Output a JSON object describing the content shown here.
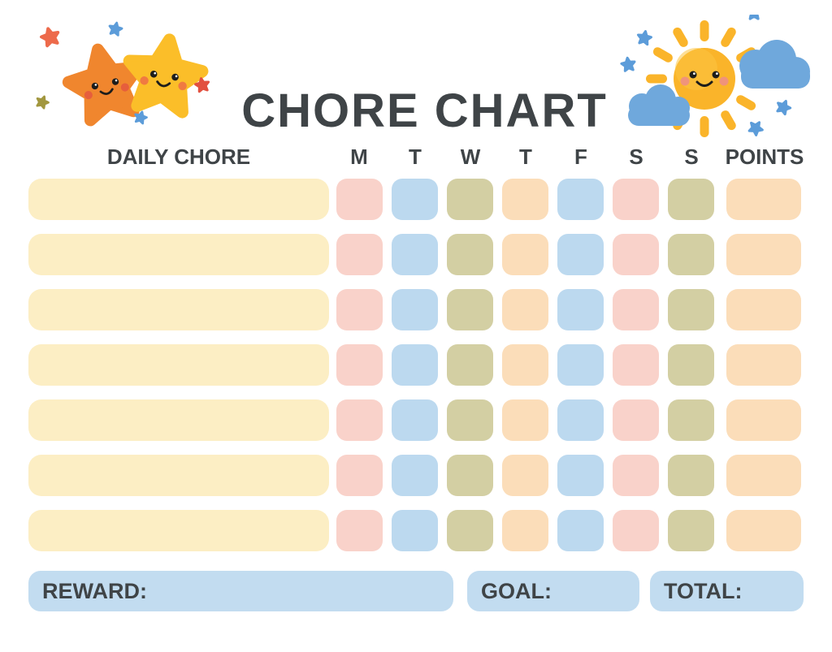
{
  "title": "CHORE CHART",
  "table": {
    "chore_column_header": "DAILY CHORE",
    "day_headers": [
      "M",
      "T",
      "W",
      "T",
      "F",
      "S",
      "S"
    ],
    "points_header": "POINTS",
    "rows": [
      {
        "chore": "",
        "days": [
          "",
          "",
          "",
          "",
          "",
          "",
          ""
        ],
        "points": ""
      },
      {
        "chore": "",
        "days": [
          "",
          "",
          "",
          "",
          "",
          "",
          ""
        ],
        "points": ""
      },
      {
        "chore": "",
        "days": [
          "",
          "",
          "",
          "",
          "",
          "",
          ""
        ],
        "points": ""
      },
      {
        "chore": "",
        "days": [
          "",
          "",
          "",
          "",
          "",
          "",
          ""
        ],
        "points": ""
      },
      {
        "chore": "",
        "days": [
          "",
          "",
          "",
          "",
          "",
          "",
          ""
        ],
        "points": ""
      },
      {
        "chore": "",
        "days": [
          "",
          "",
          "",
          "",
          "",
          "",
          ""
        ],
        "points": ""
      },
      {
        "chore": "",
        "days": [
          "",
          "",
          "",
          "",
          "",
          "",
          ""
        ],
        "points": ""
      }
    ],
    "colors": {
      "chore_cell": "#FCEEC4",
      "day_cells": [
        "#F9D2CA",
        "#BCD9EF",
        "#D3CFA3",
        "#FBDDB9",
        "#BCD9EF",
        "#F9D2CA",
        "#D3CFA3"
      ],
      "points_cell": "#FBDDB9"
    }
  },
  "footer": {
    "reward_label": "REWARD:",
    "reward_value": "",
    "goal_label": "GOAL:",
    "goal_value": "",
    "total_label": "TOTAL:",
    "total_value": "",
    "bar_color": "#C2DCF0"
  },
  "decorations": {
    "left": {
      "name": "two smiling stars with sparkles",
      "orange_star": "#F0862E",
      "yellow_star": "#FBBE29",
      "sparkles": [
        "#ED6A4B",
        "#5C9CD9",
        "#A2973F",
        "#E2503F"
      ]
    },
    "right": {
      "name": "smiling sun with clouds and sparkles",
      "sun": "#FAB42A",
      "cloud": "#6FA8DC",
      "sparkles": [
        "#5C9CD9",
        "#E2503F",
        "#F7AD2E",
        "#F0A43C",
        "#9A8F3B"
      ]
    }
  },
  "text_color": "#3F4447"
}
